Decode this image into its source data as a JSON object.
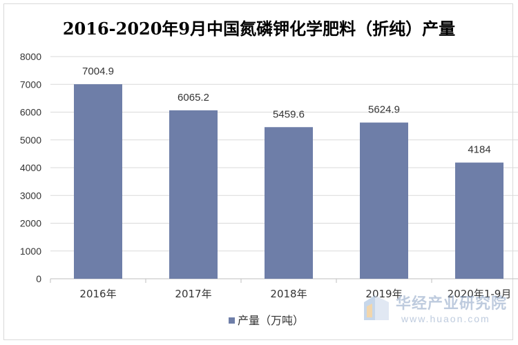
{
  "chart_data": {
    "type": "bar",
    "title": "2016-2020年9月中国氮磷钾化学肥料（折纯）产量",
    "categories": [
      "2016年",
      "2017年",
      "2018年",
      "2019年",
      "2020年1-9月"
    ],
    "series": [
      {
        "name": "产量（万吨）",
        "values": [
          7004.9,
          6065.2,
          5459.6,
          5624.9,
          4184
        ],
        "color": "#6e7ea8"
      }
    ],
    "data_labels": [
      "7004.9",
      "6065.2",
      "5459.6",
      "5624.9",
      "4184"
    ],
    "ylim": [
      0,
      8000
    ],
    "yticks": [
      0,
      1000,
      2000,
      3000,
      4000,
      5000,
      6000,
      7000,
      8000
    ],
    "xlabel": "",
    "ylabel": "",
    "grid": true,
    "legend_position": "bottom"
  },
  "watermark": {
    "name": "华经产业研究院",
    "url": "www.huaon.com"
  }
}
